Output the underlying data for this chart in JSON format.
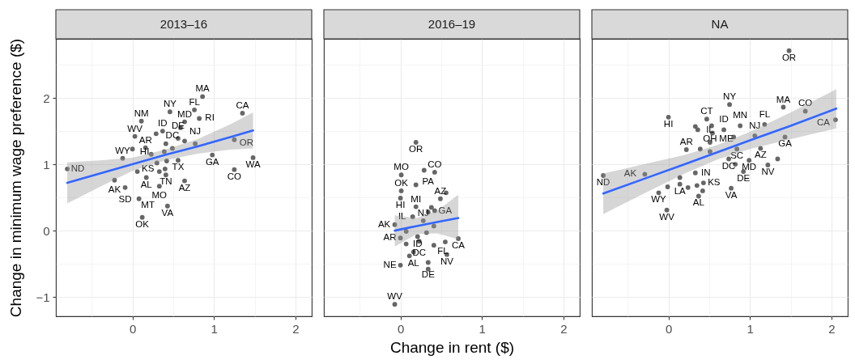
{
  "chart_data": [
    {
      "type": "scatter",
      "title": "2013–16",
      "ylabel": "Change in minimum wage preference ($)",
      "xlim": [
        -0.94,
        2.2
      ],
      "ylim": [
        -1.29,
        2.89
      ],
      "xticks": [
        {
          "value": -0.5,
          "label": null
        },
        0,
        {
          "value": 0.5,
          "label": null
        },
        1,
        {
          "value": 1.5,
          "label": null
        },
        2
      ],
      "yticks": [
        -1,
        {
          "value": -0.5,
          "label": null
        },
        0,
        {
          "value": 0.5,
          "label": null
        },
        1,
        {
          "value": 1.5,
          "label": null
        },
        2,
        {
          "value": 2.5,
          "label": null
        }
      ],
      "grid": true,
      "series": [
        {
          "type": "scatter",
          "color": "#666666",
          "marker": "circle",
          "x": [
            -0.8,
            -0.22,
            -0.09,
            -0.12,
            0.0,
            0.03,
            0.11,
            0.16,
            0.23,
            0.06,
            0.17,
            0.08,
            0.12,
            0.29,
            0.37,
            0.46,
            0.64,
            0.59,
            0.76,
            0.82,
            0.86,
            0.56,
            0.64,
            0.41,
            0.39,
            0.49,
            0.77,
            0.56,
            0.42,
            0.3,
            0.33,
            0.4,
            0.41,
            0.33,
            0.43,
            0.64,
            0.98,
            1.25,
            1.35,
            1.25,
            1.48
          ],
          "values": [
            0.93,
            0.76,
            0.65,
            1.09,
            1.23,
            1.42,
            1.65,
            1.25,
            1.15,
            0.89,
            0.8,
            0.48,
            0.2,
            1.46,
            1.5,
            1.79,
            1.64,
            1.55,
            1.82,
            1.69,
            2.02,
            1.39,
            1.35,
            1.31,
            1.19,
            1.24,
            1.31,
            1.06,
            1.05,
            1.02,
            0.89,
            0.93,
            0.84,
            0.67,
            0.37,
            0.75,
            1.14,
            0.92,
            1.77,
            1.37,
            1.1
          ],
          "value_labels": [
            "ND",
            "AK",
            "SD",
            "WY",
            "HI",
            "WV",
            "NM",
            "AR",
            null,
            null,
            "AL",
            "MT",
            "OK",
            null,
            "ID",
            "NY",
            "MD",
            null,
            "FL",
            "RI",
            "MA",
            "DE",
            null,
            null,
            null,
            "DC",
            "NJ",
            "TX",
            null,
            "KS",
            null,
            null,
            "TN",
            "MO",
            "VA",
            "AZ",
            "GA",
            "CO",
            "CA",
            "OR",
            "WA"
          ]
        },
        {
          "type": "line",
          "color": "#3366ff",
          "line_style": "solid",
          "x": [
            -0.8,
            -0.4,
            0,
            0.4,
            0.8,
            1.2,
            1.48
          ],
          "values": [
            0.72,
            0.86,
            1.0,
            1.14,
            1.27,
            1.41,
            1.51
          ],
          "lower": [
            0.41,
            0.66,
            0.9,
            1.06,
            1.16,
            1.22,
            1.24
          ],
          "upper": [
            1.03,
            1.06,
            1.1,
            1.22,
            1.38,
            1.6,
            1.78
          ]
        }
      ]
    },
    {
      "type": "scatter",
      "title": "2016–19",
      "xlabel": "Change in rent ($)",
      "xlim": [
        -0.94,
        2.2
      ],
      "ylim": [
        -1.29,
        2.89
      ],
      "tick_labels": "x",
      "xticks": [
        {
          "value": -0.5,
          "label": null
        },
        0,
        {
          "value": 0.5,
          "label": null
        },
        1,
        {
          "value": 1.5,
          "label": null
        },
        2
      ],
      "yticks": [
        -1,
        {
          "value": -0.5,
          "label": null
        },
        0,
        {
          "value": 0.5,
          "label": null
        },
        1,
        {
          "value": 1.5,
          "label": null
        },
        2,
        {
          "value": 2.5,
          "label": null
        }
      ],
      "grid": true,
      "series": [
        {
          "type": "scatter",
          "color": "#666666",
          "marker": "circle",
          "x": [
            0.19,
            0.29,
            0.42,
            0.01,
            0.19,
            0.01,
            0.0,
            0.56,
            0.49,
            0.19,
            0.38,
            0.34,
            0.42,
            0.15,
            -0.07,
            0.28,
            0.41,
            0.07,
            0.0,
            0.21,
            0.32,
            0.07,
            0.71,
            0.55,
            0.23,
            0.41,
            0.16,
            0.11,
            0.57,
            0.0,
            0.34,
            0.34,
            -0.07
          ],
          "values": [
            1.33,
            0.91,
            0.88,
            0.84,
            0.69,
            0.6,
            0.49,
            0.57,
            0.48,
            0.36,
            0.35,
            0.28,
            0.3,
            0.21,
            0.09,
            0.15,
            0.07,
            -0.01,
            -0.11,
            -0.09,
            -0.03,
            -0.2,
            -0.12,
            -0.17,
            -0.16,
            -0.22,
            -0.32,
            -0.38,
            -0.36,
            -0.52,
            -0.48,
            -0.58,
            -1.11
          ],
          "value_labels": [
            "OR",
            null,
            "CO",
            "MO",
            "PA",
            "OK",
            "HI",
            null,
            "AZ",
            "MI",
            null,
            null,
            "GA",
            "IL",
            "AK",
            "NJ",
            null,
            null,
            "AR",
            "ID",
            null,
            null,
            "CA",
            null,
            "DC",
            "FL",
            "AL",
            null,
            "NV",
            "NE",
            "DE",
            null,
            "WV"
          ]
        },
        {
          "type": "line",
          "color": "#3366ff",
          "line_style": "solid",
          "x": [
            -0.07,
            0.2,
            0.45,
            0.71
          ],
          "values": [
            0.0,
            0.07,
            0.13,
            0.19
          ],
          "lower": [
            -0.24,
            -0.05,
            -0.04,
            -0.13
          ],
          "upper": [
            0.23,
            0.19,
            0.3,
            0.54
          ]
        }
      ]
    },
    {
      "type": "scatter",
      "title": "NA",
      "xlim": [
        -0.94,
        2.2
      ],
      "ylim": [
        -1.29,
        2.89
      ],
      "tick_labels": "x",
      "xticks": [
        {
          "value": -0.5,
          "label": null
        },
        0,
        {
          "value": 0.5,
          "label": null
        },
        1,
        {
          "value": 1.5,
          "label": null
        },
        2
      ],
      "yticks": [
        -1,
        {
          "value": -0.5,
          "label": null
        },
        0,
        {
          "value": 0.5,
          "label": null
        },
        1,
        {
          "value": 1.5,
          "label": null
        },
        2,
        {
          "value": 2.5,
          "label": null
        }
      ],
      "grid": true,
      "series": [
        {
          "type": "scatter",
          "color": "#666666",
          "marker": "circle",
          "x": [
            1.48,
            0.0,
            0.75,
            1.41,
            1.68,
            2.05,
            0.47,
            0.33,
            0.36,
            0.53,
            0.54,
            0.68,
            0.8,
            0.88,
            1.18,
            1.06,
            1.43,
            0.51,
            0.22,
            0.39,
            0.51,
            0.84,
            1.13,
            1.34,
            0.74,
            0.82,
            0.99,
            1.22,
            0.92,
            -0.8,
            -0.29,
            0.33,
            0.14,
            0.43,
            0.35,
            0.42,
            0.14,
            -0.01,
            0.24,
            0.77,
            -0.12,
            0.37,
            -0.02
          ],
          "values": [
            2.71,
            1.71,
            1.9,
            1.86,
            1.8,
            1.67,
            1.68,
            1.57,
            1.52,
            1.58,
            1.47,
            1.52,
            1.41,
            1.58,
            1.6,
            1.43,
            1.41,
            1.33,
            1.22,
            1.23,
            1.19,
            1.23,
            1.24,
            1.08,
            1.08,
            1.0,
            1.06,
            0.99,
            0.89,
            0.83,
            0.85,
            0.87,
            0.8,
            0.72,
            0.68,
            0.6,
            0.7,
            0.66,
            0.65,
            0.64,
            0.57,
            0.52,
            0.31
          ],
          "value_labels": [
            "OR",
            "HI",
            "NY",
            "MA",
            "CO",
            "CA",
            "CT",
            null,
            null,
            null,
            "ME",
            "ID",
            null,
            "MN",
            "FL",
            "NJ",
            "GA",
            "IL",
            "AR",
            null,
            "OH",
            "SC",
            "AZ",
            null,
            "DC",
            null,
            "MD",
            "NV",
            "DE",
            "ND",
            "AK",
            "IN",
            null,
            "KS",
            null,
            null,
            "LA",
            null,
            null,
            "VA",
            "WY",
            "AL",
            "WV"
          ]
        },
        {
          "type": "line",
          "color": "#3366ff",
          "line_style": "solid",
          "x": [
            -0.8,
            -0.3,
            0.2,
            0.6,
            1.0,
            1.5,
            2.06
          ],
          "values": [
            0.56,
            0.78,
            1.0,
            1.18,
            1.36,
            1.58,
            1.84
          ],
          "lower": [
            0.25,
            0.56,
            0.86,
            1.07,
            1.23,
            1.38,
            1.54
          ],
          "upper": [
            0.86,
            1.0,
            1.14,
            1.29,
            1.49,
            1.78,
            2.13
          ]
        }
      ]
    }
  ]
}
